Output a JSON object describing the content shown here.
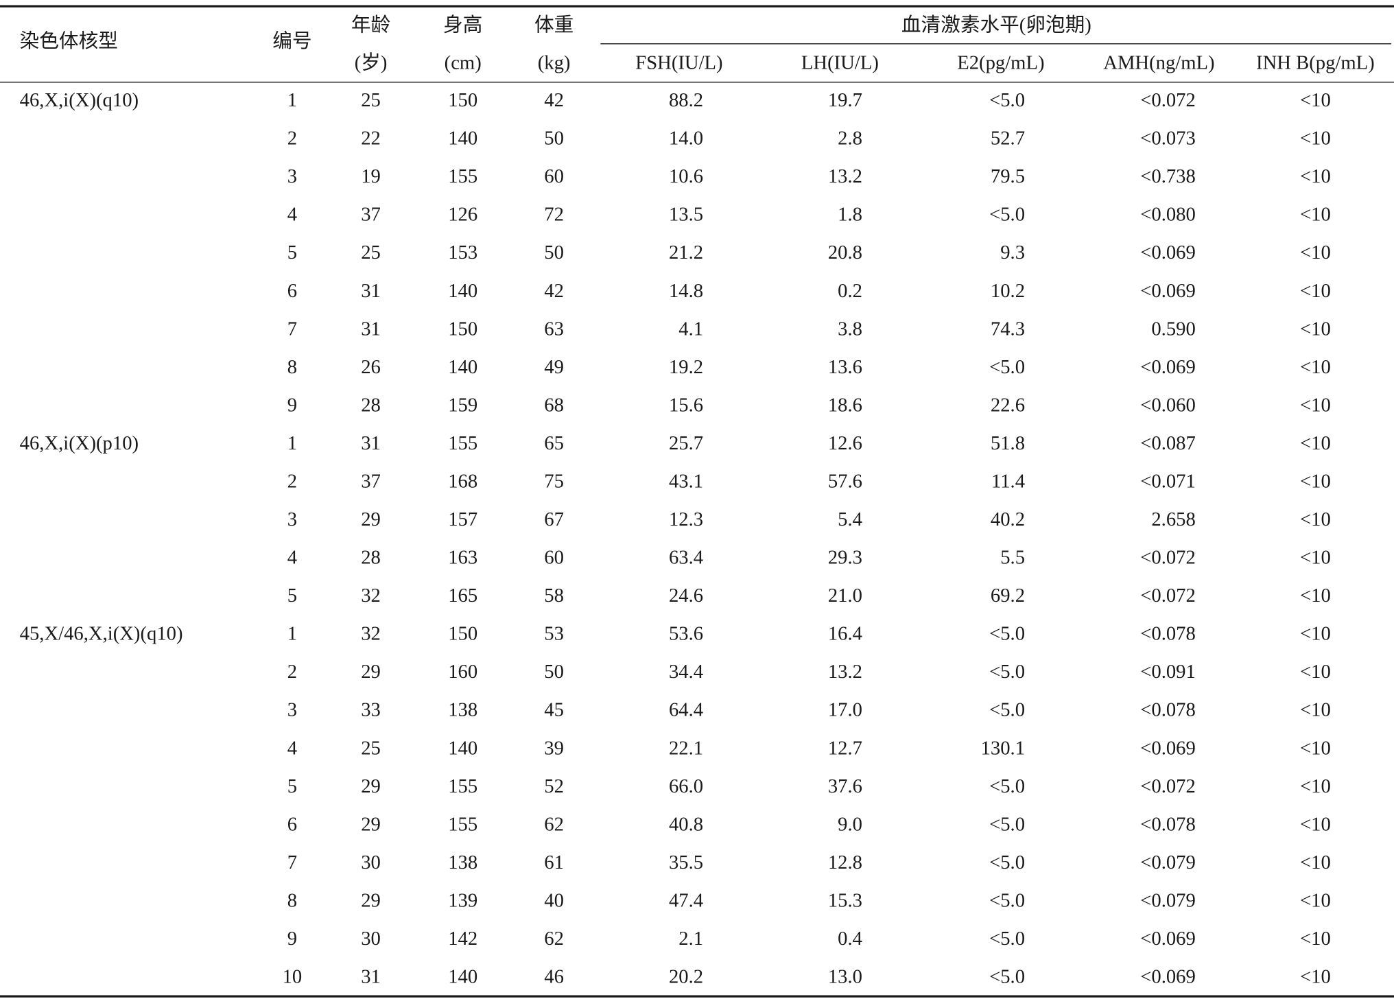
{
  "table": {
    "group_header": "血清激素水平(卵泡期)",
    "columns": [
      {
        "label": "染色体核型"
      },
      {
        "label": "编号"
      },
      {
        "label": "年龄",
        "unit": "(岁)"
      },
      {
        "label": "身高",
        "unit": "(cm)"
      },
      {
        "label": "体重",
        "unit": "(kg)"
      },
      {
        "label": "FSH(IU/L)"
      },
      {
        "label": "LH(IU/L)"
      },
      {
        "label": "E2(pg/mL)"
      },
      {
        "label": "AMH(ng/mL)"
      },
      {
        "label": "INH B(pg/mL)"
      }
    ],
    "rows": [
      [
        "46,X,i(X)(q10)",
        1,
        25,
        150,
        42,
        "88.2",
        "19.7",
        "<5.0",
        "<0.072",
        "<10"
      ],
      [
        null,
        2,
        22,
        140,
        50,
        "14.0",
        "2.8",
        "52.7",
        "<0.073",
        "<10"
      ],
      [
        null,
        3,
        19,
        155,
        60,
        "10.6",
        "13.2",
        "79.5",
        "<0.738",
        "<10"
      ],
      [
        null,
        4,
        37,
        126,
        72,
        "13.5",
        "1.8",
        "<5.0",
        "<0.080",
        "<10"
      ],
      [
        null,
        5,
        25,
        153,
        50,
        "21.2",
        "20.8",
        "9.3",
        "<0.069",
        "<10"
      ],
      [
        null,
        6,
        31,
        140,
        42,
        "14.8",
        "0.2",
        "10.2",
        "<0.069",
        "<10"
      ],
      [
        null,
        7,
        31,
        150,
        63,
        "4.1",
        "3.8",
        "74.3",
        "0.590",
        "<10"
      ],
      [
        null,
        8,
        26,
        140,
        49,
        "19.2",
        "13.6",
        "<5.0",
        "<0.069",
        "<10"
      ],
      [
        null,
        9,
        28,
        159,
        68,
        "15.6",
        "18.6",
        "22.6",
        "<0.060",
        "<10"
      ],
      [
        "46,X,i(X)(p10)",
        1,
        31,
        155,
        65,
        "25.7",
        "12.6",
        "51.8",
        "<0.087",
        "<10"
      ],
      [
        null,
        2,
        37,
        168,
        75,
        "43.1",
        "57.6",
        "11.4",
        "<0.071",
        "<10"
      ],
      [
        null,
        3,
        29,
        157,
        67,
        "12.3",
        "5.4",
        "40.2",
        "2.658",
        "<10"
      ],
      [
        null,
        4,
        28,
        163,
        60,
        "63.4",
        "29.3",
        "5.5",
        "<0.072",
        "<10"
      ],
      [
        null,
        5,
        32,
        165,
        58,
        "24.6",
        "21.0",
        "69.2",
        "<0.072",
        "<10"
      ],
      [
        "45,X/46,X,i(X)(q10)",
        1,
        32,
        150,
        53,
        "53.6",
        "16.4",
        "<5.0",
        "<0.078",
        "<10"
      ],
      [
        null,
        2,
        29,
        160,
        50,
        "34.4",
        "13.2",
        "<5.0",
        "<0.091",
        "<10"
      ],
      [
        null,
        3,
        33,
        138,
        45,
        "64.4",
        "17.0",
        "<5.0",
        "<0.078",
        "<10"
      ],
      [
        null,
        4,
        25,
        140,
        39,
        "22.1",
        "12.7",
        "130.1",
        "<0.069",
        "<10"
      ],
      [
        null,
        5,
        29,
        155,
        52,
        "66.0",
        "37.6",
        "<5.0",
        "<0.072",
        "<10"
      ],
      [
        null,
        6,
        29,
        155,
        62,
        "40.8",
        "9.0",
        "<5.0",
        "<0.078",
        "<10"
      ],
      [
        null,
        7,
        30,
        138,
        61,
        "35.5",
        "12.8",
        "<5.0",
        "<0.079",
        "<10"
      ],
      [
        null,
        8,
        29,
        139,
        40,
        "47.4",
        "15.3",
        "<5.0",
        "<0.079",
        "<10"
      ],
      [
        null,
        9,
        30,
        142,
        62,
        "2.1",
        "0.4",
        "<5.0",
        "<0.069",
        "<10"
      ],
      [
        null,
        10,
        31,
        140,
        46,
        "20.2",
        "13.0",
        "<5.0",
        "<0.069",
        "<10"
      ]
    ]
  }
}
